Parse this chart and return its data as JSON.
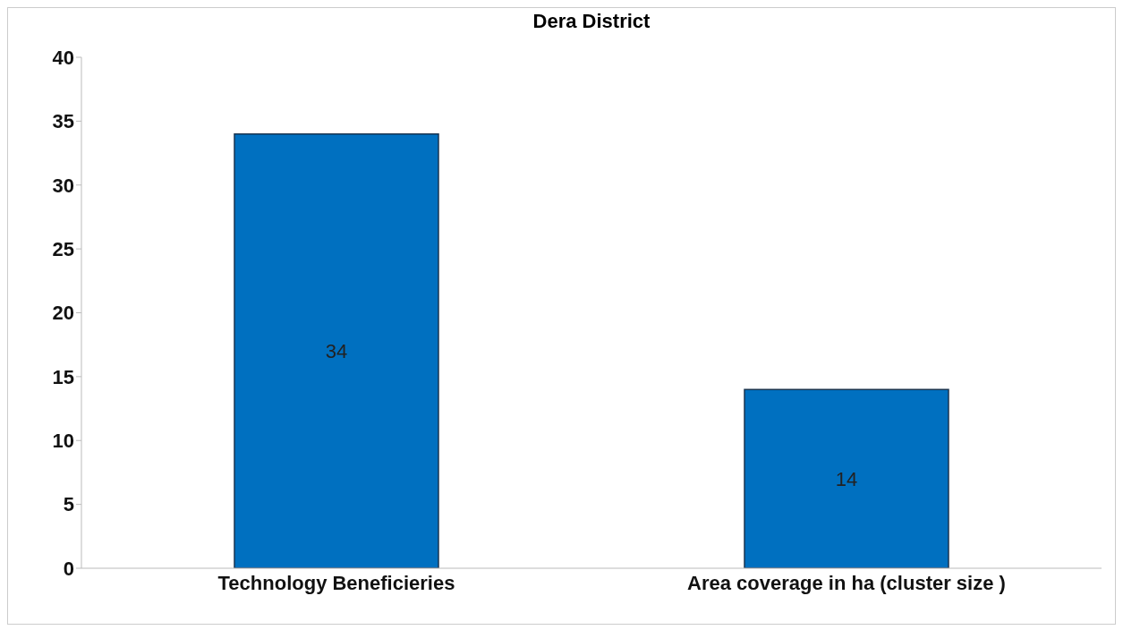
{
  "chart_data": {
    "type": "bar",
    "title": "Dera District",
    "categories": [
      "Technology Beneficieries",
      "Area coverage in ha (cluster size )"
    ],
    "values": [
      34,
      14
    ],
    "color": "#0070c0",
    "ylim": [
      0,
      40
    ],
    "yticks": [
      0,
      5,
      10,
      15,
      20,
      25,
      30,
      35,
      40
    ],
    "grid": false,
    "data_labels": true
  }
}
